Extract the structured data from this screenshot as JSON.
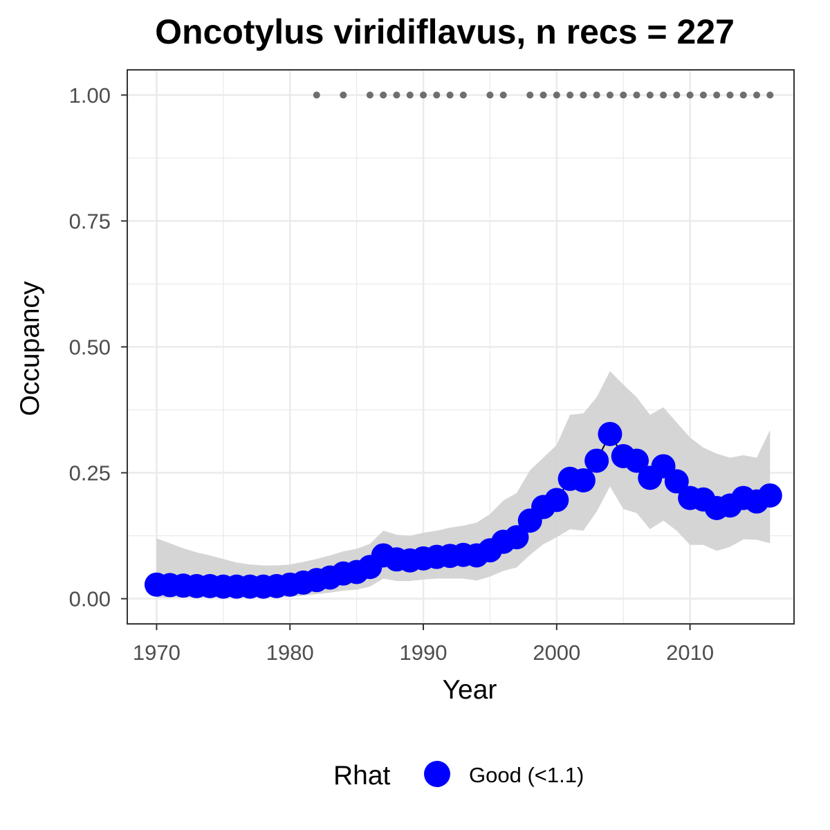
{
  "chart_data": {
    "type": "line",
    "title": "Oncotylus viridiflavus, n recs = 227",
    "xlabel": "Year",
    "ylabel": "Occupancy",
    "xlim": [
      1967.8,
      2017.8
    ],
    "ylim": [
      -0.05,
      1.05
    ],
    "x_ticks": [
      1970,
      1980,
      1990,
      2000,
      2010
    ],
    "x_tick_labels": [
      "1970",
      "1980",
      "1990",
      "2000",
      "2010"
    ],
    "y_ticks": [
      0,
      0.25,
      0.5,
      0.75,
      1.0
    ],
    "y_tick_labels": [
      "0.00",
      "0.25",
      "0.50",
      "0.75",
      "1.00"
    ],
    "grid": true,
    "legend": {
      "title": "Rhat",
      "placement": "bottom",
      "items": [
        {
          "label": "Good (<1.1)",
          "color": "#0000ff"
        }
      ]
    },
    "colors": {
      "point": "#0000ff",
      "band": "#d3d3d3",
      "record_dot": "#6e6e6e",
      "grid": "#ebebeb"
    },
    "series": [
      {
        "x": [
          1970,
          1971,
          1972,
          1973,
          1974,
          1975,
          1976,
          1977,
          1978,
          1979,
          1980,
          1981,
          1982,
          1983,
          1984,
          1985,
          1986,
          1987,
          1988,
          1989,
          1990,
          1991,
          1992,
          1993,
          1994,
          1995,
          1996,
          1997,
          1998,
          1999,
          2000,
          2001,
          2002,
          2003,
          2004,
          2005,
          2006,
          2007,
          2008,
          2009,
          2010,
          2011,
          2012,
          2013,
          2014,
          2015,
          2016
        ],
        "values": [
          0.028,
          0.027,
          0.026,
          0.025,
          0.025,
          0.024,
          0.024,
          0.024,
          0.024,
          0.025,
          0.028,
          0.032,
          0.037,
          0.042,
          0.05,
          0.053,
          0.063,
          0.086,
          0.078,
          0.076,
          0.08,
          0.083,
          0.085,
          0.087,
          0.086,
          0.096,
          0.113,
          0.122,
          0.155,
          0.182,
          0.196,
          0.238,
          0.235,
          0.274,
          0.327,
          0.283,
          0.274,
          0.24,
          0.263,
          0.233,
          0.2,
          0.197,
          0.18,
          0.185,
          0.2,
          0.193,
          0.205
        ],
        "upper": [
          0.12,
          0.11,
          0.1,
          0.092,
          0.086,
          0.079,
          0.072,
          0.068,
          0.066,
          0.066,
          0.068,
          0.073,
          0.079,
          0.086,
          0.094,
          0.099,
          0.109,
          0.135,
          0.127,
          0.125,
          0.131,
          0.135,
          0.141,
          0.145,
          0.151,
          0.168,
          0.195,
          0.21,
          0.255,
          0.28,
          0.305,
          0.365,
          0.368,
          0.4,
          0.452,
          0.425,
          0.4,
          0.365,
          0.38,
          0.35,
          0.32,
          0.3,
          0.288,
          0.28,
          0.285,
          0.28,
          0.335
        ],
        "lower": [
          0.002,
          0.002,
          0.002,
          0.002,
          0.002,
          0.002,
          0.002,
          0.002,
          0.002,
          0.002,
          0.004,
          0.006,
          0.009,
          0.012,
          0.016,
          0.018,
          0.024,
          0.04,
          0.035,
          0.035,
          0.038,
          0.04,
          0.04,
          0.04,
          0.036,
          0.044,
          0.055,
          0.062,
          0.087,
          0.108,
          0.122,
          0.138,
          0.135,
          0.173,
          0.223,
          0.178,
          0.17,
          0.138,
          0.155,
          0.135,
          0.107,
          0.107,
          0.095,
          0.103,
          0.118,
          0.117,
          0.11
        ]
      }
    ],
    "record_years": [
      1982,
      1984,
      1986,
      1987,
      1988,
      1989,
      1990,
      1991,
      1992,
      1993,
      1995,
      1996,
      1998,
      1999,
      2000,
      2001,
      2002,
      2003,
      2004,
      2005,
      2006,
      2007,
      2008,
      2009,
      2010,
      2011,
      2012,
      2013,
      2014,
      2015,
      2016
    ],
    "record_value": 1.0
  }
}
